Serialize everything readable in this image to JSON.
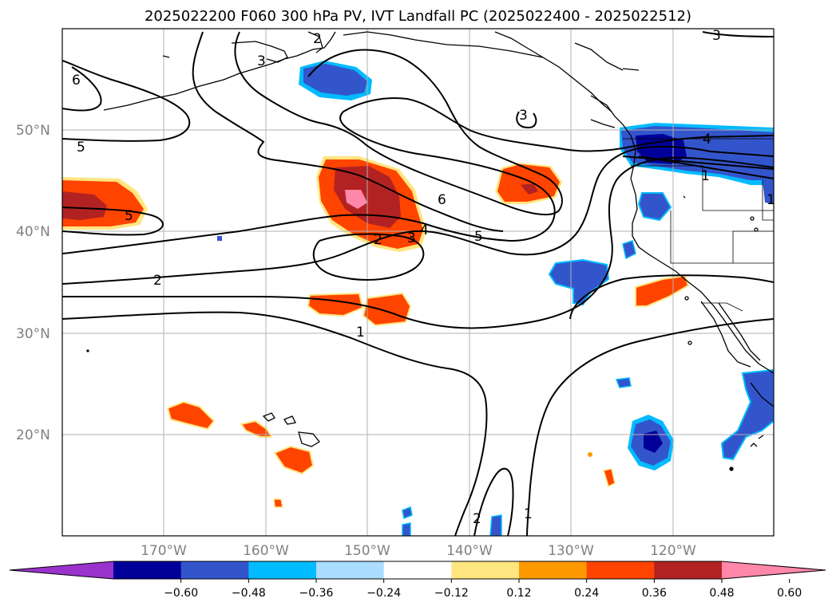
{
  "title": "2025022200 F060 300 hPa PV, IVT Landfall PC (2025022400 - 2025022512)",
  "lat_labels": [
    "50°N",
    "40°N",
    "30°N",
    "20°N"
  ],
  "lon_labels": [
    "170°W",
    "160°W",
    "150°W",
    "140°W",
    "130°W",
    "120°W"
  ],
  "contour_labels": [
    "6",
    "5",
    "5",
    "3",
    "2",
    "2",
    "3",
    "4",
    "5",
    "6",
    "3",
    "4",
    "1",
    "2",
    "1",
    "1",
    "2",
    "1",
    "3"
  ],
  "colorbar": {
    "ticks": [
      "−0.60",
      "−0.48",
      "−0.36",
      "−0.24",
      "−0.12",
      "0.12",
      "0.24",
      "0.36",
      "0.48",
      "0.60"
    ],
    "colors": [
      "#9933cc",
      "#000099",
      "#3355cc",
      "#00bbff",
      "#aaddff",
      "#ffffff",
      "#ffe680",
      "#ff9900",
      "#ff4400",
      "#b22222",
      "#ff88aa"
    ]
  },
  "map_colors": {
    "ocean": "#ffffff",
    "coastline": "#000000",
    "grid": "#b0b0b0",
    "contour": "#000000"
  }
}
